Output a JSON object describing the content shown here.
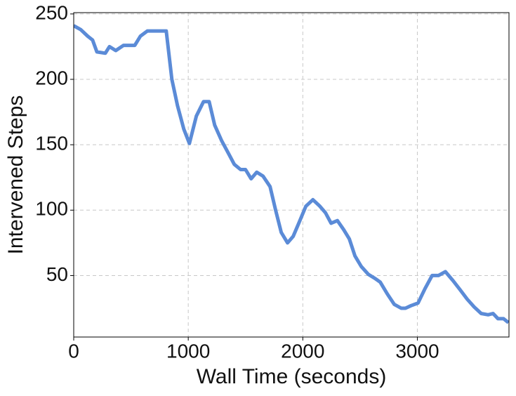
{
  "chart_data": {
    "type": "line",
    "xlabel": "Wall Time (seconds)",
    "ylabel": "Intervened Steps",
    "x": [
      0,
      61,
      122,
      165,
      202,
      276,
      312,
      367,
      435,
      533,
      582,
      643,
      808,
      857,
      906,
      961,
      1010,
      1071,
      1133,
      1182,
      1231,
      1292,
      1353,
      1402,
      1457,
      1500,
      1549,
      1598,
      1653,
      1714,
      1763,
      1812,
      1867,
      1916,
      1965,
      2027,
      2088,
      2149,
      2198,
      2247,
      2302,
      2357,
      2406,
      2455,
      2510,
      2571,
      2627,
      2676,
      2737,
      2798,
      2859,
      2896,
      2945,
      3006,
      3067,
      3129,
      3184,
      3245,
      3312,
      3374,
      3435,
      3496,
      3557,
      3618,
      3661,
      3704,
      3753,
      3796
    ],
    "values": [
      241,
      238,
      233,
      230,
      221,
      220,
      225,
      222,
      226,
      226,
      233,
      237,
      237,
      200,
      180,
      162,
      151,
      172,
      183,
      183,
      165,
      153,
      143,
      135,
      131,
      131,
      124,
      129,
      126,
      118,
      100,
      83,
      75,
      80,
      90,
      103,
      108,
      103,
      98,
      90,
      92,
      85,
      78,
      65,
      57,
      51,
      48,
      45,
      36,
      28,
      25,
      25,
      27,
      29,
      40,
      50,
      50,
      53,
      46,
      39,
      32,
      26,
      21,
      20,
      21,
      17,
      17,
      14
    ],
    "color": "#5b8bd7",
    "xlim": [
      0,
      3800
    ],
    "ylim": [
      3,
      251
    ],
    "xticks": [
      0,
      1000,
      2000,
      3000
    ],
    "yticks": [
      50,
      100,
      150,
      200,
      250
    ],
    "grid": true
  }
}
